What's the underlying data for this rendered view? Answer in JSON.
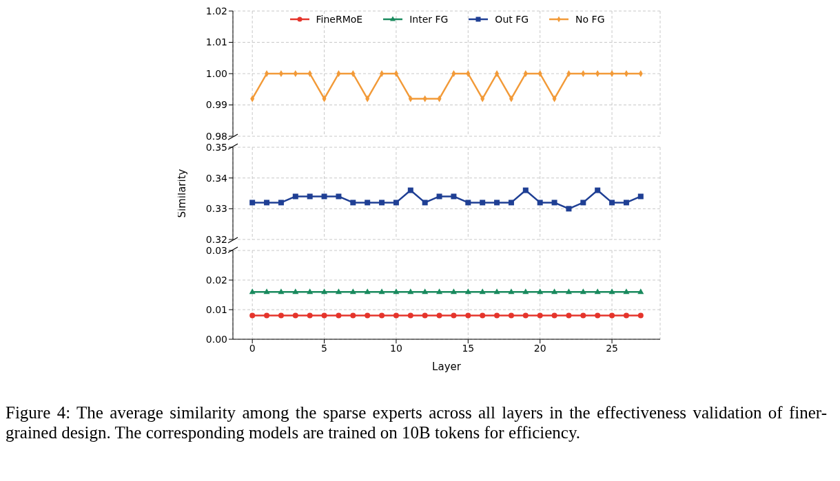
{
  "chart_data": [
    {
      "type": "line",
      "x": [
        0,
        1,
        2,
        3,
        4,
        5,
        6,
        7,
        8,
        9,
        10,
        11,
        12,
        13,
        14,
        15,
        16,
        17,
        18,
        19,
        20,
        21,
        22,
        23,
        24,
        25,
        26,
        27
      ],
      "xlim": [
        -1.35,
        28.35
      ],
      "xticks": [
        0,
        5,
        10,
        15,
        20,
        25
      ],
      "ylim": [
        0.98,
        1.02
      ],
      "yticks": [
        0.98,
        0.99,
        {
          "value": 1,
          "label": "1.00"
        },
        1.01,
        1.02
      ],
      "tick_labels": "y",
      "grid": true,
      "legend": "top",
      "line_style": "solid",
      "series": [
        {
          "name": "No FG",
          "color": "#f29a38",
          "marker": "diamond",
          "values": [
            0.992,
            1,
            1,
            1,
            1,
            0.992,
            1,
            1,
            0.992,
            1,
            1,
            0.992,
            0.992,
            0.992,
            1,
            1,
            0.992,
            1,
            0.992,
            1,
            1,
            0.992,
            1,
            1,
            1,
            1,
            1,
            1
          ]
        }
      ]
    },
    {
      "type": "line",
      "x": [
        0,
        1,
        2,
        3,
        4,
        5,
        6,
        7,
        8,
        9,
        10,
        11,
        12,
        13,
        14,
        15,
        16,
        17,
        18,
        19,
        20,
        21,
        22,
        23,
        24,
        25,
        26,
        27
      ],
      "xlim": [
        -1.35,
        28.35
      ],
      "xticks": [
        0,
        5,
        10,
        15,
        20,
        25
      ],
      "ylim": [
        0.32,
        0.35
      ],
      "yticks": [
        0.32,
        0.33,
        0.34,
        0.35
      ],
      "tick_labels": "y",
      "grid": true,
      "legend": "top",
      "ylabel": "Similarity",
      "line_style": "solid",
      "series": [
        {
          "name": "Out FG",
          "color": "#1f3f94",
          "marker": "square",
          "values": [
            0.332,
            0.332,
            0.332,
            0.334,
            0.334,
            0.334,
            0.334,
            0.332,
            0.332,
            0.332,
            0.332,
            0.336,
            0.332,
            0.334,
            0.334,
            0.332,
            0.332,
            0.332,
            0.332,
            0.336,
            0.332,
            0.332,
            0.33,
            0.332,
            0.336,
            0.332,
            0.332,
            0.334
          ]
        }
      ]
    },
    {
      "type": "line",
      "x": [
        0,
        1,
        2,
        3,
        4,
        5,
        6,
        7,
        8,
        9,
        10,
        11,
        12,
        13,
        14,
        15,
        16,
        17,
        18,
        19,
        20,
        21,
        22,
        23,
        24,
        25,
        26,
        27
      ],
      "xlim": [
        -1.35,
        28.35
      ],
      "xticks": [
        0,
        5,
        10,
        15,
        20,
        25
      ],
      "ylim": [
        0,
        0.03
      ],
      "yticks": [
        {
          "value": 0,
          "label": "0.00"
        },
        0.01,
        0.02,
        0.03
      ],
      "grid": true,
      "legend": "top",
      "xlabel": "Layer",
      "line_style": "solid",
      "series": [
        {
          "name": "FineRMoE",
          "color": "#e5342b",
          "marker": "circle",
          "values": [
            0.008,
            0.008,
            0.008,
            0.008,
            0.008,
            0.008,
            0.008,
            0.008,
            0.008,
            0.008,
            0.008,
            0.008,
            0.008,
            0.008,
            0.008,
            0.008,
            0.008,
            0.008,
            0.008,
            0.008,
            0.008,
            0.008,
            0.008,
            0.008,
            0.008,
            0.008,
            0.008,
            0.008
          ]
        },
        {
          "name": "Inter FG",
          "color": "#1a8a5e",
          "marker": "triangle",
          "values": [
            0.016,
            0.016,
            0.016,
            0.016,
            0.016,
            0.016,
            0.016,
            0.016,
            0.016,
            0.016,
            0.016,
            0.016,
            0.016,
            0.016,
            0.016,
            0.016,
            0.016,
            0.016,
            0.016,
            0.016,
            0.016,
            0.016,
            0.016,
            0.016,
            0.016,
            0.016,
            0.016,
            0.016
          ]
        }
      ],
      "annotations": [
        "Figure 4:  The average similarity among the sparse experts across all layers in the effectiveness validation of finer-grained design.  The corresponding models are trained on 10B tokens for efficiency."
      ]
    }
  ]
}
